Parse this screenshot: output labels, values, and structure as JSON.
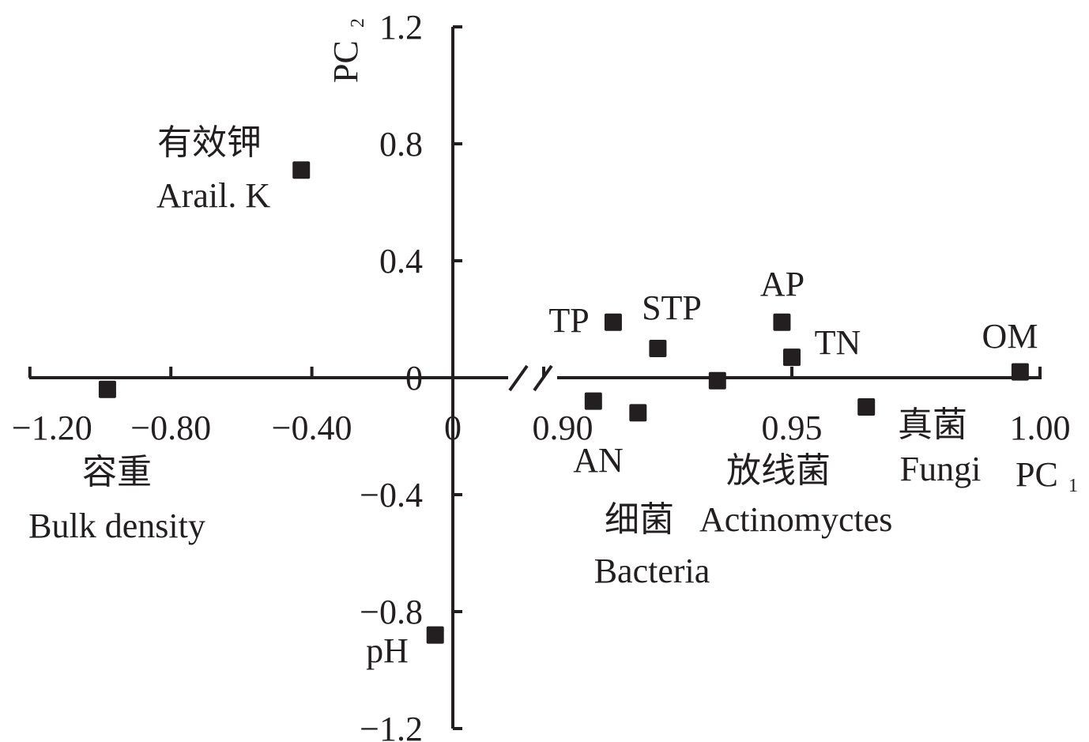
{
  "chart_data": {
    "type": "scatter",
    "title": "",
    "xlabel": "PC",
    "xlabel_sub": "1",
    "ylabel": "PC",
    "ylabel_sub": "2",
    "x_axis_broken": true,
    "x_segments": [
      {
        "range": [
          -1.2,
          0
        ],
        "ticks": [
          -1.2,
          -0.8,
          -0.4,
          0
        ],
        "tick_labels": [
          "−1.20",
          "−0.80",
          "−0.40",
          "0"
        ]
      },
      {
        "range": [
          0.9,
          1.0
        ],
        "ticks": [
          0.9,
          0.95,
          1.0
        ],
        "tick_labels": [
          "0.90",
          "0.95",
          "1.00"
        ]
      }
    ],
    "ylim": [
      -1.2,
      1.2
    ],
    "y_ticks": [
      1.2,
      0.8,
      0.4,
      0,
      -0.4,
      -0.8,
      -1.2
    ],
    "y_tick_labels": [
      "1.2",
      "0.8",
      "0.4",
      "0",
      "−0.4",
      "−0.8",
      "−1.2"
    ],
    "grid": false,
    "marker_color": "#231f20",
    "points": [
      {
        "label": [
          "有效钾",
          "Arail. K"
        ],
        "x": -0.43,
        "y": 0.71
      },
      {
        "label": [
          "容重",
          "Bulk density"
        ],
        "x": -0.98,
        "y": -0.04
      },
      {
        "label": [
          "pH"
        ],
        "x": -0.05,
        "y": -0.88
      },
      {
        "label": [
          "TP"
        ],
        "x": 0.914,
        "y": 0.19
      },
      {
        "label": [
          "STP"
        ],
        "x": 0.923,
        "y": 0.1
      },
      {
        "label": [
          "AN"
        ],
        "x": 0.91,
        "y": -0.08
      },
      {
        "label": [
          "细菌",
          "Bacteria"
        ],
        "x": 0.919,
        "y": -0.12
      },
      {
        "label": [
          "放线菌",
          "Actinomyctes"
        ],
        "x": 0.935,
        "y": -0.01
      },
      {
        "label": [
          "AP"
        ],
        "x": 0.948,
        "y": 0.19
      },
      {
        "label": [
          "TN"
        ],
        "x": 0.95,
        "y": 0.07
      },
      {
        "label": [
          "真菌",
          "Fungi"
        ],
        "x": 0.965,
        "y": -0.1
      },
      {
        "label": [
          "OM"
        ],
        "x": 0.996,
        "y": 0.02
      }
    ]
  }
}
